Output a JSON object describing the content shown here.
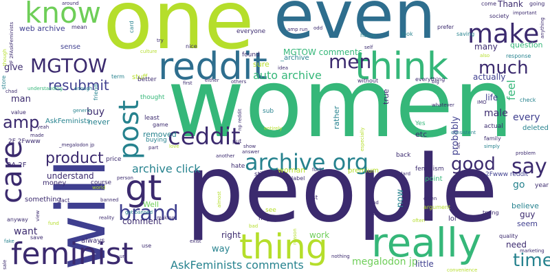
{
  "palette": {
    "purple": "#3b2a6e",
    "indigo": "#3f3f8f",
    "blue": "#2e6e8e",
    "teal": "#26828e",
    "green": "#35b779",
    "lightgreen": "#6ece58",
    "lime": "#b5de2b"
  },
  "words": [
    {
      "text": "women",
      "color": "green"
    },
    {
      "text": "people",
      "color": "purple"
    },
    {
      "text": "one",
      "color": "lime"
    },
    {
      "text": "even",
      "color": "blue"
    },
    {
      "text": "will",
      "color": "indigo"
    },
    {
      "text": "really",
      "color": "green"
    },
    {
      "text": "thing",
      "color": "lime"
    },
    {
      "text": "feminist",
      "color": "purple"
    },
    {
      "text": "reddit",
      "color": "blue"
    },
    {
      "text": "think",
      "color": "green"
    },
    {
      "text": "make",
      "color": "purple"
    },
    {
      "text": "know",
      "color": "lightgreen"
    },
    {
      "text": "care",
      "color": "purple"
    },
    {
      "text": "post",
      "color": "teal"
    },
    {
      "text": "gt",
      "color": "purple"
    },
    {
      "text": "ceddit",
      "color": "purple"
    },
    {
      "text": "archive org",
      "color": "teal"
    },
    {
      "text": "say",
      "color": "purple"
    },
    {
      "text": "good",
      "color": "purple"
    },
    {
      "text": "much",
      "color": "purple"
    },
    {
      "text": "time",
      "color": "teal"
    },
    {
      "text": "brand",
      "color": "indigo"
    },
    {
      "text": "MGTOW",
      "color": "purple"
    },
    {
      "text": "men",
      "color": "purple"
    },
    {
      "text": "product",
      "color": "purple"
    },
    {
      "text": "amp",
      "color": "purple"
    },
    {
      "text": "resubmit",
      "color": "indigo"
    },
    {
      "text": "archive click",
      "color": "teal"
    },
    {
      "text": "AskFeminists comments",
      "color": "teal"
    },
    {
      "text": "auto archive",
      "color": "green"
    },
    {
      "text": "megalodon jp",
      "color": "lightgreen"
    },
    {
      "text": "MGTOW comments",
      "color": "green"
    },
    {
      "text": "web archive",
      "color": "indigo"
    },
    {
      "text": "give",
      "color": "purple"
    },
    {
      "text": "sense",
      "color": "indigo"
    },
    {
      "text": "Thank",
      "color": "purple"
    },
    {
      "text": "question",
      "color": "green"
    },
    {
      "text": "many",
      "color": "purple"
    },
    {
      "text": "actually",
      "color": "indigo"
    },
    {
      "text": "life",
      "color": "indigo"
    },
    {
      "text": "feel",
      "color": "green"
    },
    {
      "text": "male",
      "color": "purple"
    },
    {
      "text": "every",
      "color": "indigo"
    },
    {
      "text": "deleted",
      "color": "teal"
    },
    {
      "text": "buy",
      "color": "purple"
    },
    {
      "text": "man",
      "color": "purple"
    },
    {
      "text": "never",
      "color": "teal"
    },
    {
      "text": "probably",
      "color": "indigo"
    },
    {
      "text": "comment",
      "color": "purple"
    },
    {
      "text": "want",
      "color": "purple"
    },
    {
      "text": "understand",
      "color": "purple"
    },
    {
      "text": "money",
      "color": "purple"
    },
    {
      "text": "something",
      "color": "purple"
    },
    {
      "text": "go",
      "color": "teal"
    },
    {
      "text": "believe",
      "color": "teal"
    },
    {
      "text": "guy",
      "color": "purple"
    },
    {
      "text": "seem",
      "color": "indigo"
    },
    {
      "text": "need",
      "color": "purple"
    },
    {
      "text": "right",
      "color": "purple"
    },
    {
      "text": "way",
      "color": "teal"
    },
    {
      "text": "work",
      "color": "lightgreen"
    },
    {
      "text": "little",
      "color": "indigo"
    },
    {
      "text": "now",
      "color": "teal"
    },
    {
      "text": "removed",
      "color": "teal"
    },
    {
      "text": "woman",
      "color": "lime"
    },
    {
      "text": "Well",
      "color": "lightgreen"
    },
    {
      "text": "always",
      "color": "purple"
    },
    {
      "text": "rather",
      "color": "teal"
    },
    {
      "text": "true",
      "color": "purple"
    },
    {
      "text": "sure",
      "color": "lime"
    },
    {
      "text": "_archive",
      "color": "teal"
    },
    {
      "text": "premium",
      "color": "lime"
    },
    {
      "text": "etc",
      "color": "purple"
    },
    {
      "text": "2Fwww reddit",
      "color": "indigo"
    },
    {
      "text": "read",
      "color": "purple"
    },
    {
      "text": "lol",
      "color": "purple"
    },
    {
      "text": "year",
      "color": "purple"
    },
    {
      "text": "point",
      "color": "green"
    },
    {
      "text": "stuff",
      "color": "lime"
    },
    {
      "text": "thought",
      "color": "green"
    },
    {
      "text": "better",
      "color": "purple"
    },
    {
      "text": "AskFeminists",
      "color": "teal"
    },
    {
      "text": "least",
      "color": "purple"
    },
    {
      "text": "game",
      "color": "purple"
    },
    {
      "text": "3A 2F",
      "color": "purple"
    },
    {
      "text": "2F 2Fwww",
      "color": "purple"
    },
    {
      "text": "price",
      "color": "purple"
    },
    {
      "text": "course",
      "color": "purple"
    },
    {
      "text": "found",
      "color": "purple"
    },
    {
      "text": "everyone",
      "color": "purple"
    },
    {
      "text": "nice",
      "color": "purple"
    },
    {
      "text": "hate",
      "color": "purple"
    },
    {
      "text": "sub",
      "color": "teal"
    },
    {
      "text": "put",
      "color": "purple"
    },
    {
      "text": "still",
      "color": "purple"
    },
    {
      "text": "label",
      "color": "purple"
    },
    {
      "text": "last",
      "color": "purple"
    },
    {
      "text": "see",
      "color": "lime"
    },
    {
      "text": "might",
      "color": "purple"
    },
    {
      "text": "mean",
      "color": "purple"
    },
    {
      "text": "quality",
      "color": "purple"
    },
    {
      "text": "actual",
      "color": "purple"
    },
    {
      "text": "family",
      "color": "purple"
    },
    {
      "text": "back",
      "color": "purple"
    },
    {
      "text": "feminism",
      "color": "purple"
    },
    {
      "text": "trying",
      "color": "purple"
    },
    {
      "text": "without",
      "color": "purple"
    },
    {
      "text": "everything",
      "color": "purple"
    },
    {
      "text": "saving",
      "color": "teal"
    },
    {
      "text": "response",
      "color": "teal"
    },
    {
      "text": "prefer",
      "color": "purple"
    },
    {
      "text": "look",
      "color": "teal"
    },
    {
      "text": "home",
      "color": "teal"
    },
    {
      "text": "come",
      "color": "purple"
    },
    {
      "text": "going",
      "color": "purple"
    },
    {
      "text": "society",
      "color": "purple"
    },
    {
      "text": "amp run",
      "color": "purple"
    },
    {
      "text": "card",
      "color": "teal"
    },
    {
      "text": "culture",
      "color": "lime"
    },
    {
      "text": "first",
      "color": "purple"
    },
    {
      "text": "either",
      "color": "purple"
    },
    {
      "text": "others",
      "color": "purple"
    },
    {
      "text": "idea",
      "color": "purple"
    },
    {
      "text": "term",
      "color": "teal"
    },
    {
      "text": "friend",
      "color": "teal"
    },
    {
      "text": "value",
      "color": "purple"
    },
    {
      "text": "store",
      "color": "teal"
    },
    {
      "text": "chad",
      "color": "purple"
    },
    {
      "text": "understanding",
      "color": "green"
    },
    {
      "text": "enough",
      "color": "teal"
    },
    {
      "text": "yeah",
      "color": "purple"
    },
    {
      "text": "made",
      "color": "purple"
    },
    {
      "text": "generic",
      "color": "teal"
    },
    {
      "text": "_megalodon jp",
      "color": "purple"
    },
    {
      "text": "buying",
      "color": "teal"
    },
    {
      "text": "part",
      "color": "purple"
    },
    {
      "text": "love",
      "color": "lime"
    },
    {
      "text": "entirely",
      "color": "lime"
    },
    {
      "text": "show",
      "color": "purple"
    },
    {
      "text": "answer",
      "color": "purple"
    },
    {
      "text": "another",
      "color": "purple"
    },
    {
      "text": "np reddit",
      "color": "purple"
    },
    {
      "text": "Yes",
      "color": "green"
    },
    {
      "text": "consistent",
      "color": "teal"
    },
    {
      "text": "whatever",
      "color": "purple"
    },
    {
      "text": "check",
      "color": "teal"
    },
    {
      "text": "simply",
      "color": "teal"
    },
    {
      "text": "problem",
      "color": "purple"
    },
    {
      "text": "standard",
      "color": "purple"
    },
    {
      "text": "kind",
      "color": "purple"
    },
    {
      "text": "real",
      "color": "purple"
    },
    {
      "text": "given",
      "color": "purple"
    },
    {
      "text": "argument",
      "color": "lime"
    },
    {
      "text": "often",
      "color": "lime"
    },
    {
      "text": "anyway",
      "color": "purple"
    },
    {
      "text": "fact",
      "color": "purple"
    },
    {
      "text": "view",
      "color": "purple"
    },
    {
      "text": "save",
      "color": "purple"
    },
    {
      "text": "fake",
      "color": "teal"
    },
    {
      "text": "banned",
      "color": "purple"
    },
    {
      "text": "got banned",
      "color": "teal"
    },
    {
      "text": "making",
      "color": "purple"
    },
    {
      "text": "reality",
      "color": "purple"
    },
    {
      "text": "person",
      "color": "purple"
    },
    {
      "text": "url",
      "color": "purple"
    },
    {
      "text": "use",
      "color": "purple"
    },
    {
      "text": "exist",
      "color": "purple"
    },
    {
      "text": "bad",
      "color": "lime"
    },
    {
      "text": "nothing",
      "color": "purple"
    },
    {
      "text": "convenience",
      "color": "lime"
    },
    {
      "text": "marketing",
      "color": "purple"
    },
    {
      "text": "around",
      "color": "purple"
    },
    {
      "text": "fuck",
      "color": "purple"
    },
    {
      "text": "important",
      "color": "purple"
    },
    {
      "text": "anything",
      "color": "purple"
    },
    {
      "text": "sale",
      "color": "purple"
    },
    {
      "text": "2F 2FAskFeminists",
      "color": "purple"
    },
    {
      "text": "though",
      "color": "lime"
    },
    {
      "text": "try",
      "color": "purple"
    },
    {
      "text": "odd",
      "color": "purple"
    },
    {
      "text": "self",
      "color": "purple"
    },
    {
      "text": "also",
      "color": "lime"
    },
    {
      "text": "big",
      "color": "purple"
    },
    {
      "text": "IMO",
      "color": "purple"
    },
    {
      "text": "world",
      "color": "lime"
    },
    {
      "text": "fund",
      "color": "lime"
    },
    {
      "text": "let",
      "color": "purple"
    },
    {
      "text": "especially",
      "color": "lime"
    },
    {
      "text": "reason",
      "color": "lime"
    },
    {
      "text": "almost",
      "color": "lime"
    }
  ]
}
